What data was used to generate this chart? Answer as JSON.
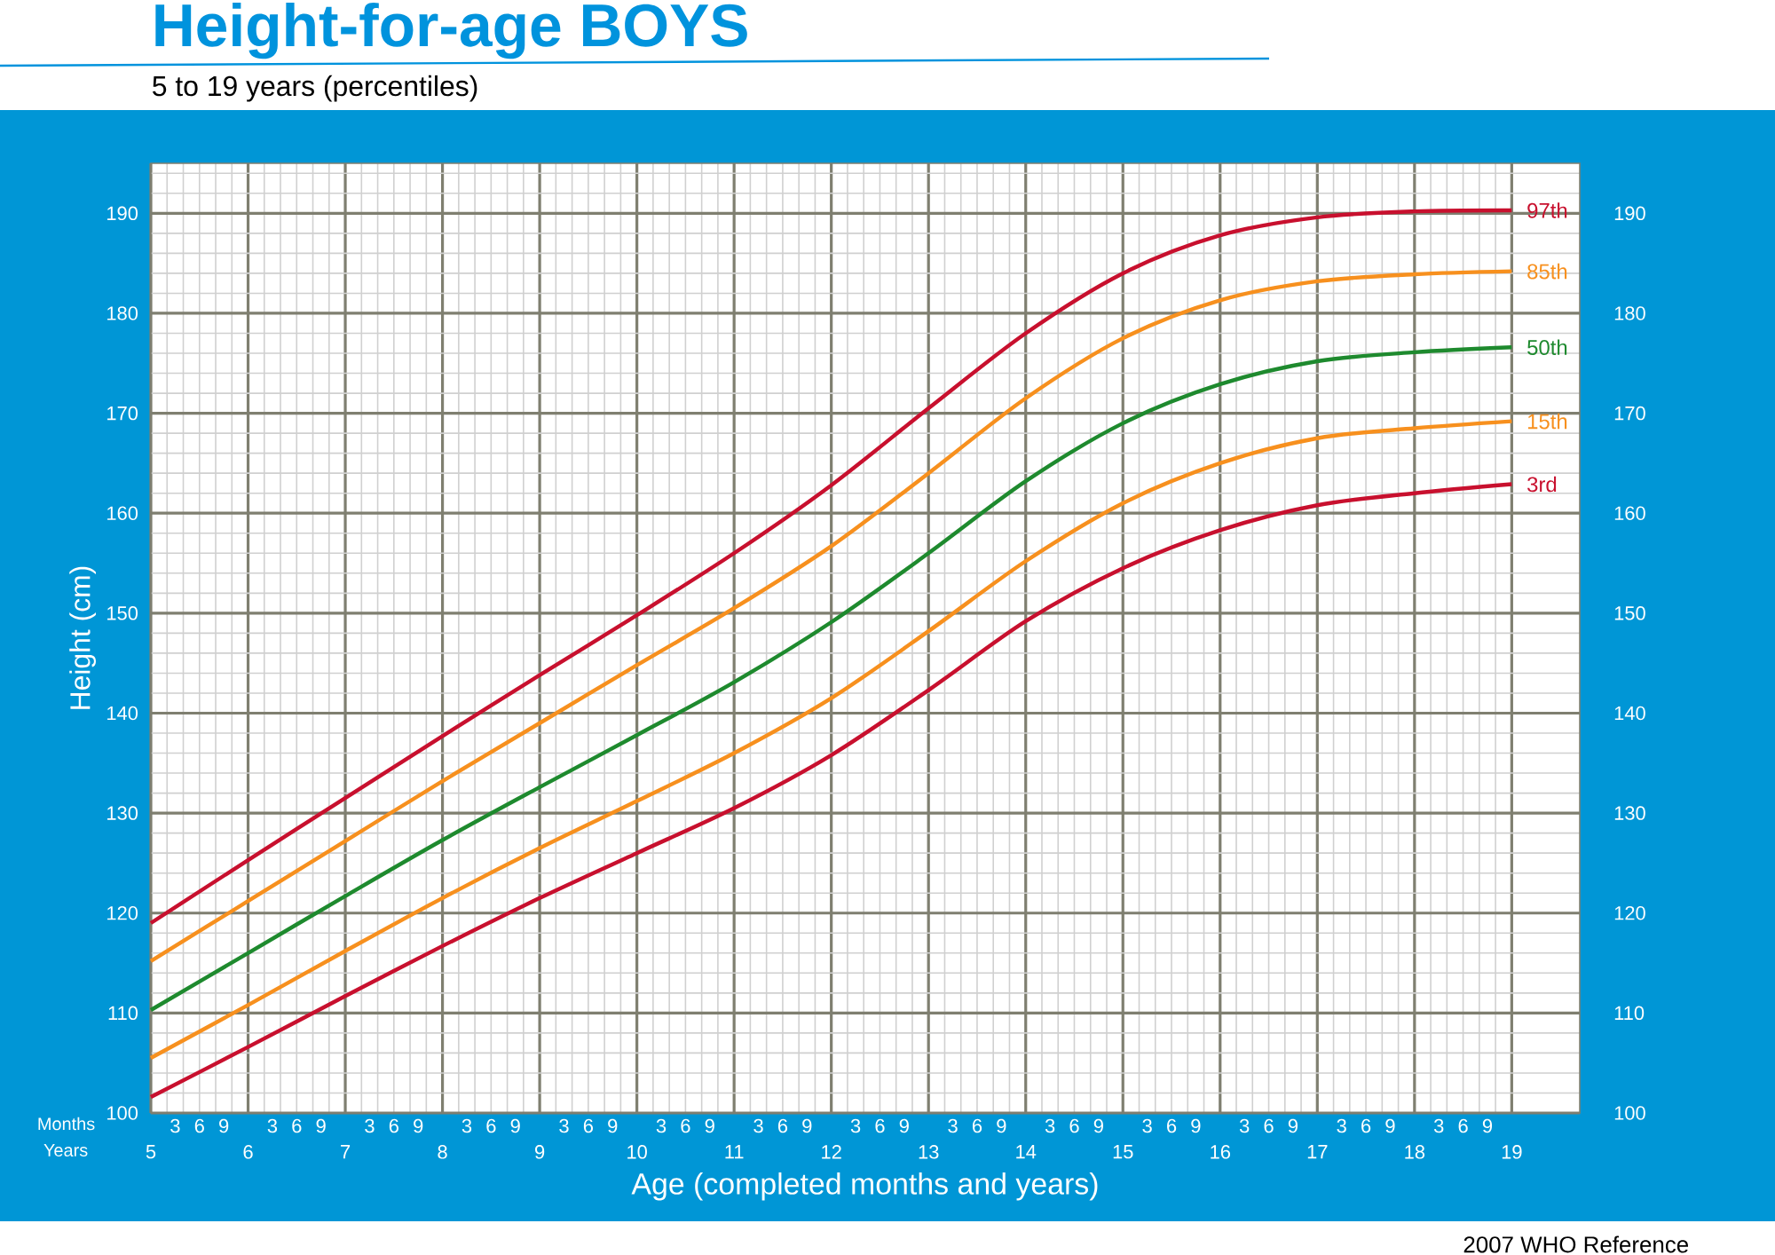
{
  "chart_data": {
    "type": "line",
    "title": "Height-for-age  BOYS",
    "subtitle": "5 to 19 years (percentiles)",
    "xlabel": "Age (completed months and years)",
    "ylabel": "Height (cm)",
    "annotations": [
      "Months",
      "Years",
      "2007 WHO Reference",
      "3",
      "6",
      "9",
      "3",
      "6",
      "9",
      "3",
      "6",
      "9",
      "3",
      "6",
      "9",
      "3",
      "6",
      "9",
      "3",
      "6",
      "9",
      "3",
      "6",
      "9",
      "3",
      "6",
      "9",
      "3",
      "6",
      "9",
      "3",
      "6",
      "9",
      "3",
      "6",
      "9",
      "3",
      "6",
      "9",
      "3",
      "6",
      "9",
      "3",
      "6",
      "9"
    ],
    "x": [
      5,
      6,
      7,
      8,
      9,
      10,
      11,
      12,
      13,
      14,
      15,
      16,
      17,
      18,
      19
    ],
    "series": [
      {
        "name": "97th",
        "color": "#c8102e",
        "values": [
          119.0,
          125.3,
          131.5,
          137.7,
          143.8,
          149.8,
          156.0,
          162.8,
          170.5,
          178.0,
          184.0,
          187.8,
          189.6,
          190.2,
          190.3
        ]
      },
      {
        "name": "85th",
        "color": "#f7901e",
        "values": [
          115.2,
          121.2,
          127.2,
          133.2,
          139.0,
          144.8,
          150.5,
          156.7,
          164.0,
          171.5,
          177.5,
          181.3,
          183.2,
          183.9,
          184.2
        ]
      },
      {
        "name": "50th",
        "color": "#1e8a2e",
        "values": [
          110.3,
          116.0,
          121.7,
          127.3,
          132.6,
          137.8,
          143.1,
          149.1,
          156.0,
          163.2,
          169.0,
          172.9,
          175.2,
          176.1,
          176.6
        ]
      },
      {
        "name": "15th",
        "color": "#f7901e",
        "values": [
          105.5,
          110.8,
          116.2,
          121.5,
          126.5,
          131.2,
          136.0,
          141.5,
          148.2,
          155.2,
          161.0,
          165.0,
          167.5,
          168.5,
          169.2
        ]
      },
      {
        "name": "3rd",
        "color": "#c8102e",
        "values": [
          101.6,
          106.6,
          111.7,
          116.7,
          121.5,
          126.0,
          130.5,
          135.8,
          142.3,
          149.2,
          154.5,
          158.3,
          160.8,
          162.0,
          162.9
        ]
      }
    ],
    "xlim": [
      5,
      19.7
    ],
    "ylim": [
      100,
      195
    ],
    "xticks": [
      5,
      6,
      7,
      8,
      9,
      10,
      11,
      12,
      13,
      14,
      15,
      16,
      17,
      18,
      19
    ],
    "yticks": [
      100,
      110,
      120,
      130,
      140,
      150,
      160,
      170,
      180,
      190
    ],
    "y2lim": [
      100,
      195
    ],
    "y2ticks": [
      100,
      110,
      120,
      130,
      140,
      150,
      160,
      170,
      180,
      190
    ],
    "grid": true,
    "marker": "none",
    "line_style": "solid"
  }
}
